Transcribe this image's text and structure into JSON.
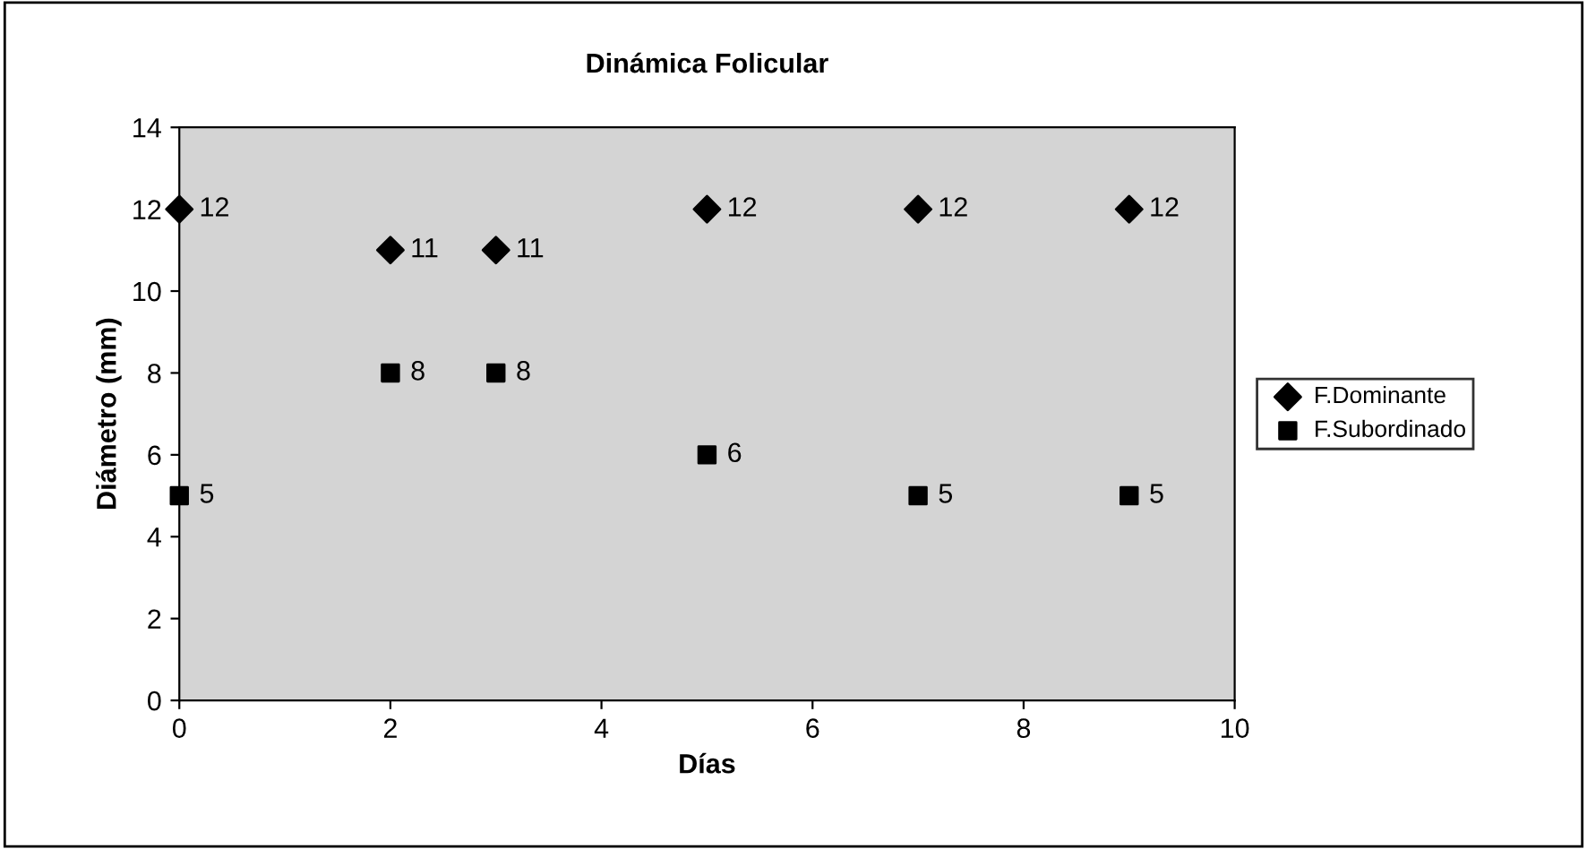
{
  "chart_data": {
    "type": "scatter",
    "title": "Dinámica Folicular",
    "xlabel": "Días",
    "ylabel": "Diámetro (mm)",
    "xlim": [
      0,
      10
    ],
    "xticks": [
      0,
      2,
      4,
      6,
      8,
      10
    ],
    "ylim": [
      0,
      14
    ],
    "yticks": [
      0,
      2,
      4,
      6,
      8,
      10,
      12,
      14
    ],
    "grid": false,
    "legend": "right",
    "data_labels": true,
    "series": [
      {
        "name": "F.Dominante",
        "color": "#000000",
        "marker": "diamond",
        "x": [
          0,
          2,
          3,
          5,
          7,
          9
        ],
        "values": [
          12,
          11,
          11,
          12,
          12,
          12
        ]
      },
      {
        "name": "F.Subordinado",
        "color": "#000000",
        "marker": "square",
        "x": [
          0,
          2,
          3,
          5,
          7,
          9
        ],
        "values": [
          5,
          8,
          8,
          6,
          5,
          5
        ]
      }
    ]
  }
}
